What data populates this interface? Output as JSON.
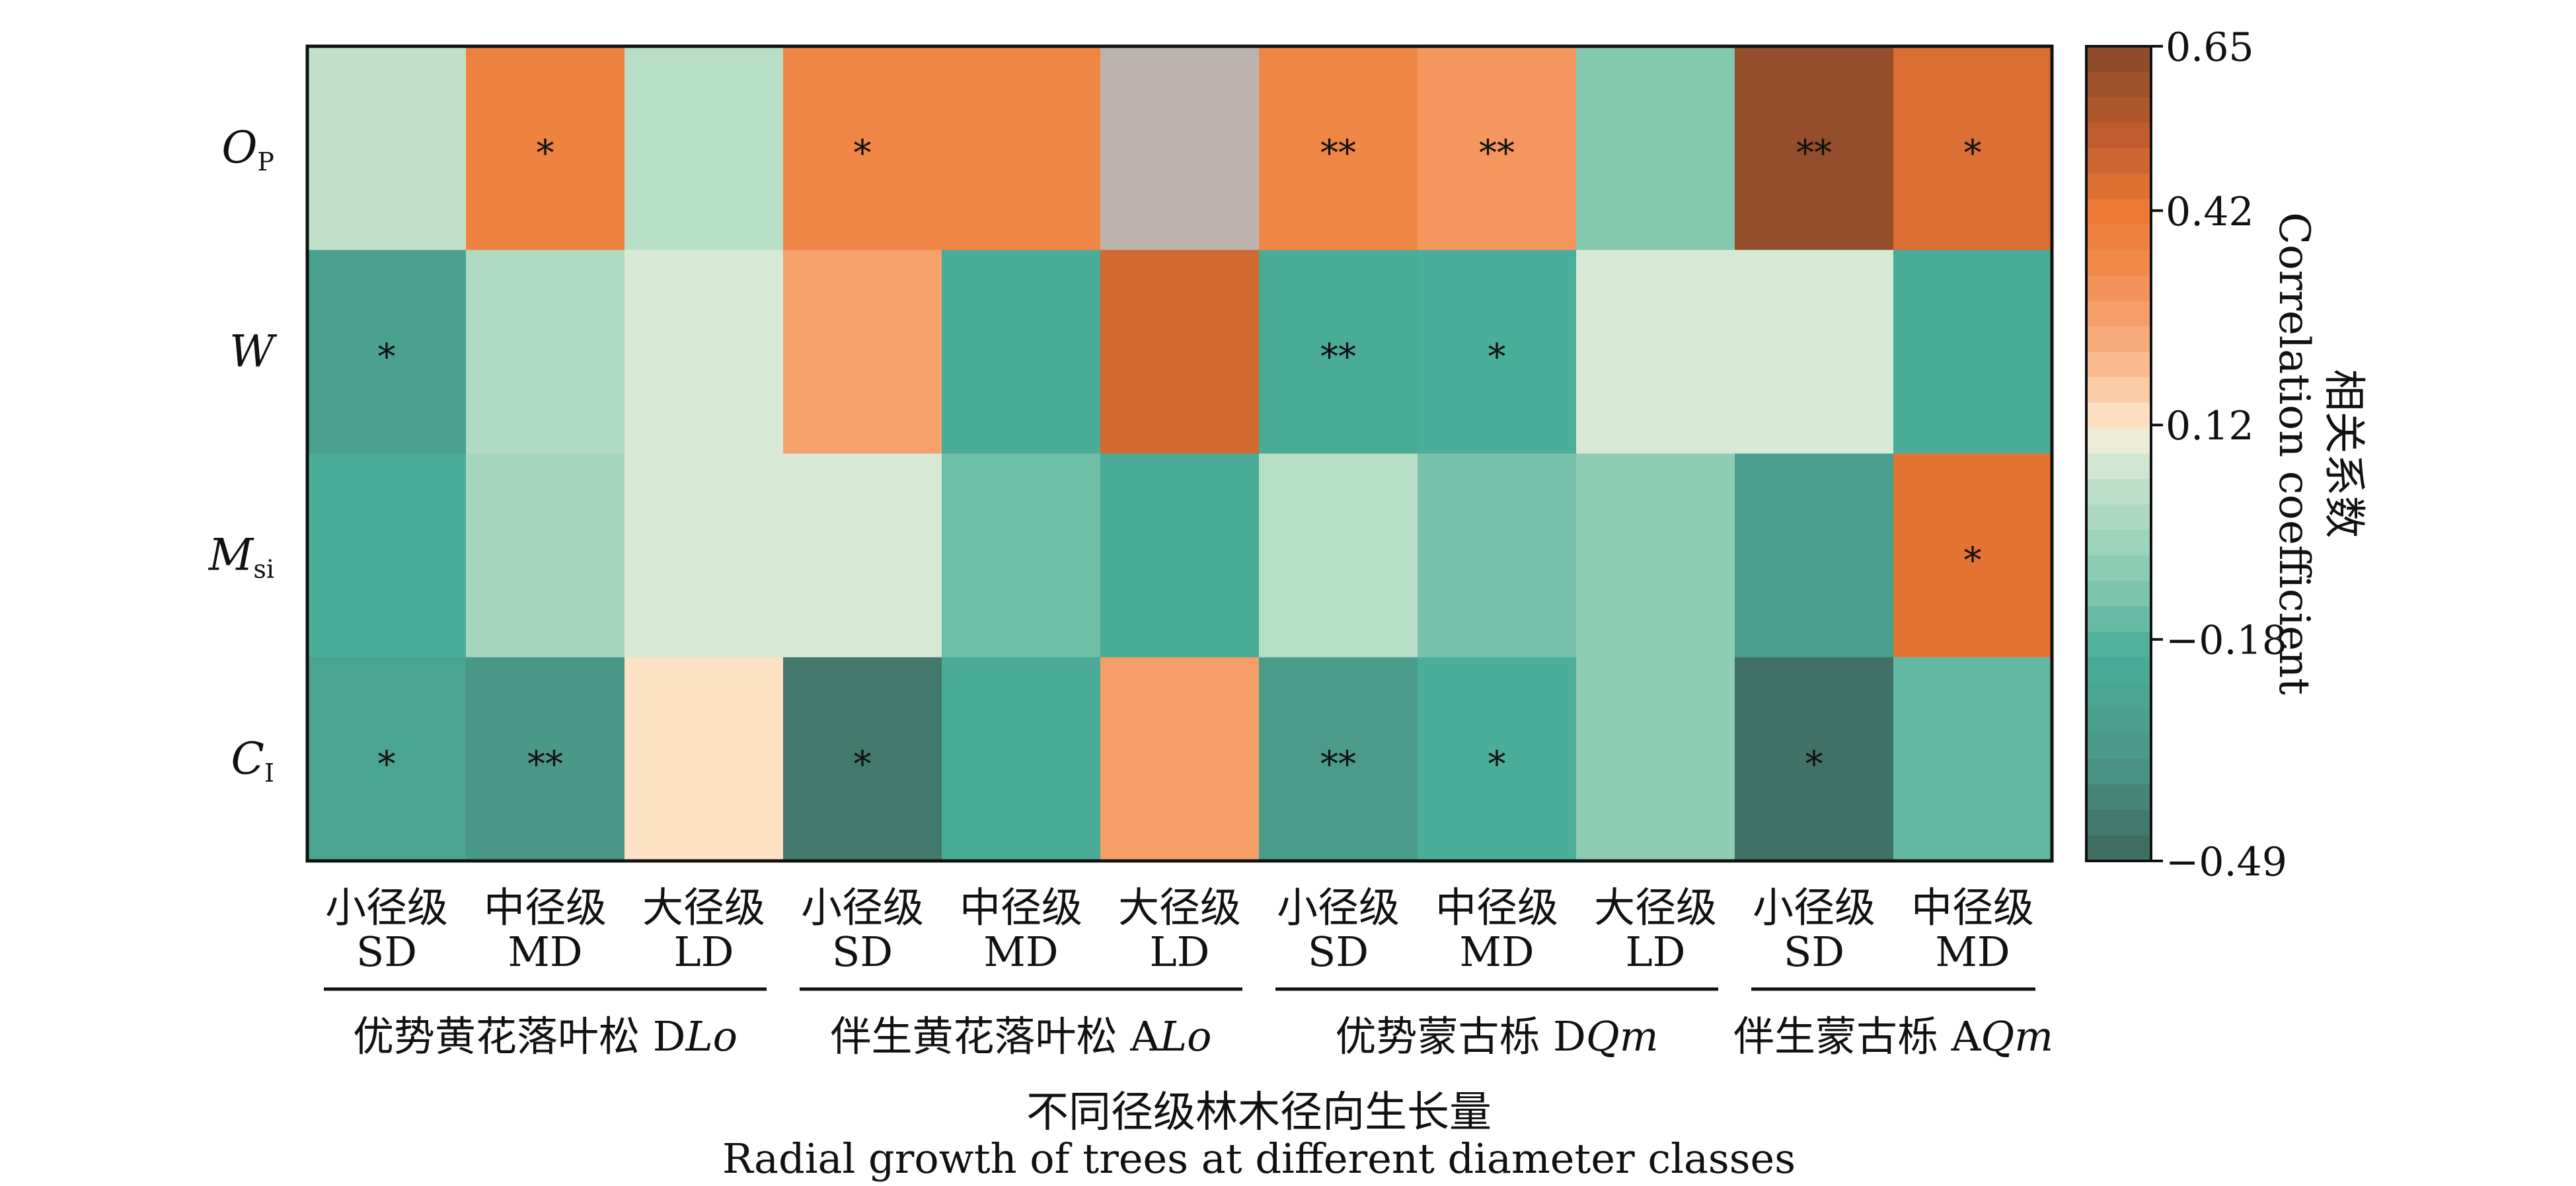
{
  "chart_data": {
    "type": "heatmap",
    "rows": [
      {
        "main": "O",
        "sub": "P"
      },
      {
        "main": "W",
        "sub": ""
      },
      {
        "main": "M",
        "sub": "si"
      },
      {
        "main": "C",
        "sub": "I"
      }
    ],
    "columns": [
      {
        "zh": "小径级",
        "en": "SD"
      },
      {
        "zh": "中径级",
        "en": "MD"
      },
      {
        "zh": "大径级",
        "en": "LD"
      },
      {
        "zh": "小径级",
        "en": "SD"
      },
      {
        "zh": "中径级",
        "en": "MD"
      },
      {
        "zh": "大径级",
        "en": "LD"
      },
      {
        "zh": "小径级",
        "en": "SD"
      },
      {
        "zh": "中径级",
        "en": "MD"
      },
      {
        "zh": "大径级",
        "en": "LD"
      },
      {
        "zh": "小径级",
        "en": "SD"
      },
      {
        "zh": "中径级",
        "en": "MD"
      }
    ],
    "groups": [
      {
        "zh": "优势黄花落叶松 D",
        "code": "Lo",
        "start": 0,
        "end": 2
      },
      {
        "zh": "伴生黄花落叶松 A",
        "code": "Lo",
        "start": 3,
        "end": 5
      },
      {
        "zh": "优势蒙古栎 D",
        "code": "Qm",
        "start": 6,
        "end": 8
      },
      {
        "zh": "伴生蒙古栎 A",
        "code": "Qm",
        "start": 9,
        "end": 10
      }
    ],
    "values": [
      [
        0.04,
        0.38,
        0.02,
        0.36,
        0.36,
        0.12,
        0.36,
        0.3,
        -0.1,
        0.62,
        0.46
      ],
      [
        -0.28,
        0.0,
        0.07,
        0.27,
        -0.22,
        0.48,
        -0.22,
        -0.2,
        0.07,
        0.07,
        -0.22
      ],
      [
        -0.2,
        -0.02,
        0.07,
        0.07,
        -0.14,
        -0.22,
        0.02,
        -0.12,
        -0.08,
        -0.3,
        0.44
      ],
      [
        -0.26,
        -0.34,
        0.13,
        -0.44,
        -0.22,
        0.28,
        -0.32,
        -0.2,
        -0.08,
        -0.46,
        -0.16
      ]
    ],
    "significance": [
      [
        "",
        "*",
        "",
        "*",
        "",
        "",
        "**",
        "**",
        "",
        "**",
        "*"
      ],
      [
        "*",
        "",
        "",
        "",
        "",
        "",
        "**",
        "*",
        "",
        "",
        ""
      ],
      [
        "",
        "",
        "",
        "",
        "",
        "",
        "",
        "",
        "",
        "",
        "*"
      ],
      [
        "*",
        "**",
        "",
        "*",
        "",
        "",
        "**",
        "*",
        "",
        "*",
        ""
      ]
    ],
    "colorbar": {
      "title_zh": "相关系数",
      "title_en": "Correlation coefficient",
      "min": -0.49,
      "max": 0.65,
      "ticks": [
        {
          "value": 0.65,
          "label": "0.65"
        },
        {
          "value": 0.42,
          "label": "0.42"
        },
        {
          "value": 0.12,
          "label": "0.12"
        },
        {
          "value": -0.18,
          "label": "−0.18"
        },
        {
          "value": -0.49,
          "label": "−0.49"
        }
      ],
      "stops": [
        {
          "v": -0.49,
          "c": "#3f675d"
        },
        {
          "v": -0.35,
          "c": "#4a9686"
        },
        {
          "v": -0.2,
          "c": "#4aae9a"
        },
        {
          "v": -0.1,
          "c": "#85c8b0"
        },
        {
          "v": 0.05,
          "c": "#c5e3cd"
        },
        {
          "v": 0.09,
          "c": "#e8eedb"
        },
        {
          "v": 0.12,
          "c": "#fde6cb"
        },
        {
          "v": 0.22,
          "c": "#f8b284"
        },
        {
          "v": 0.34,
          "c": "#f08a4b"
        },
        {
          "v": 0.42,
          "c": "#ec7a36"
        },
        {
          "v": 0.52,
          "c": "#c05d2e"
        },
        {
          "v": 0.65,
          "c": "#87492a"
        }
      ],
      "overrides": [
        {
          "row": 0,
          "col": 5,
          "color": "#bcb3ae"
        }
      ]
    },
    "xlabel_zh": "不同径级林木径向生长量",
    "xlabel_en": "Radial growth of trees at different diameter classes"
  }
}
